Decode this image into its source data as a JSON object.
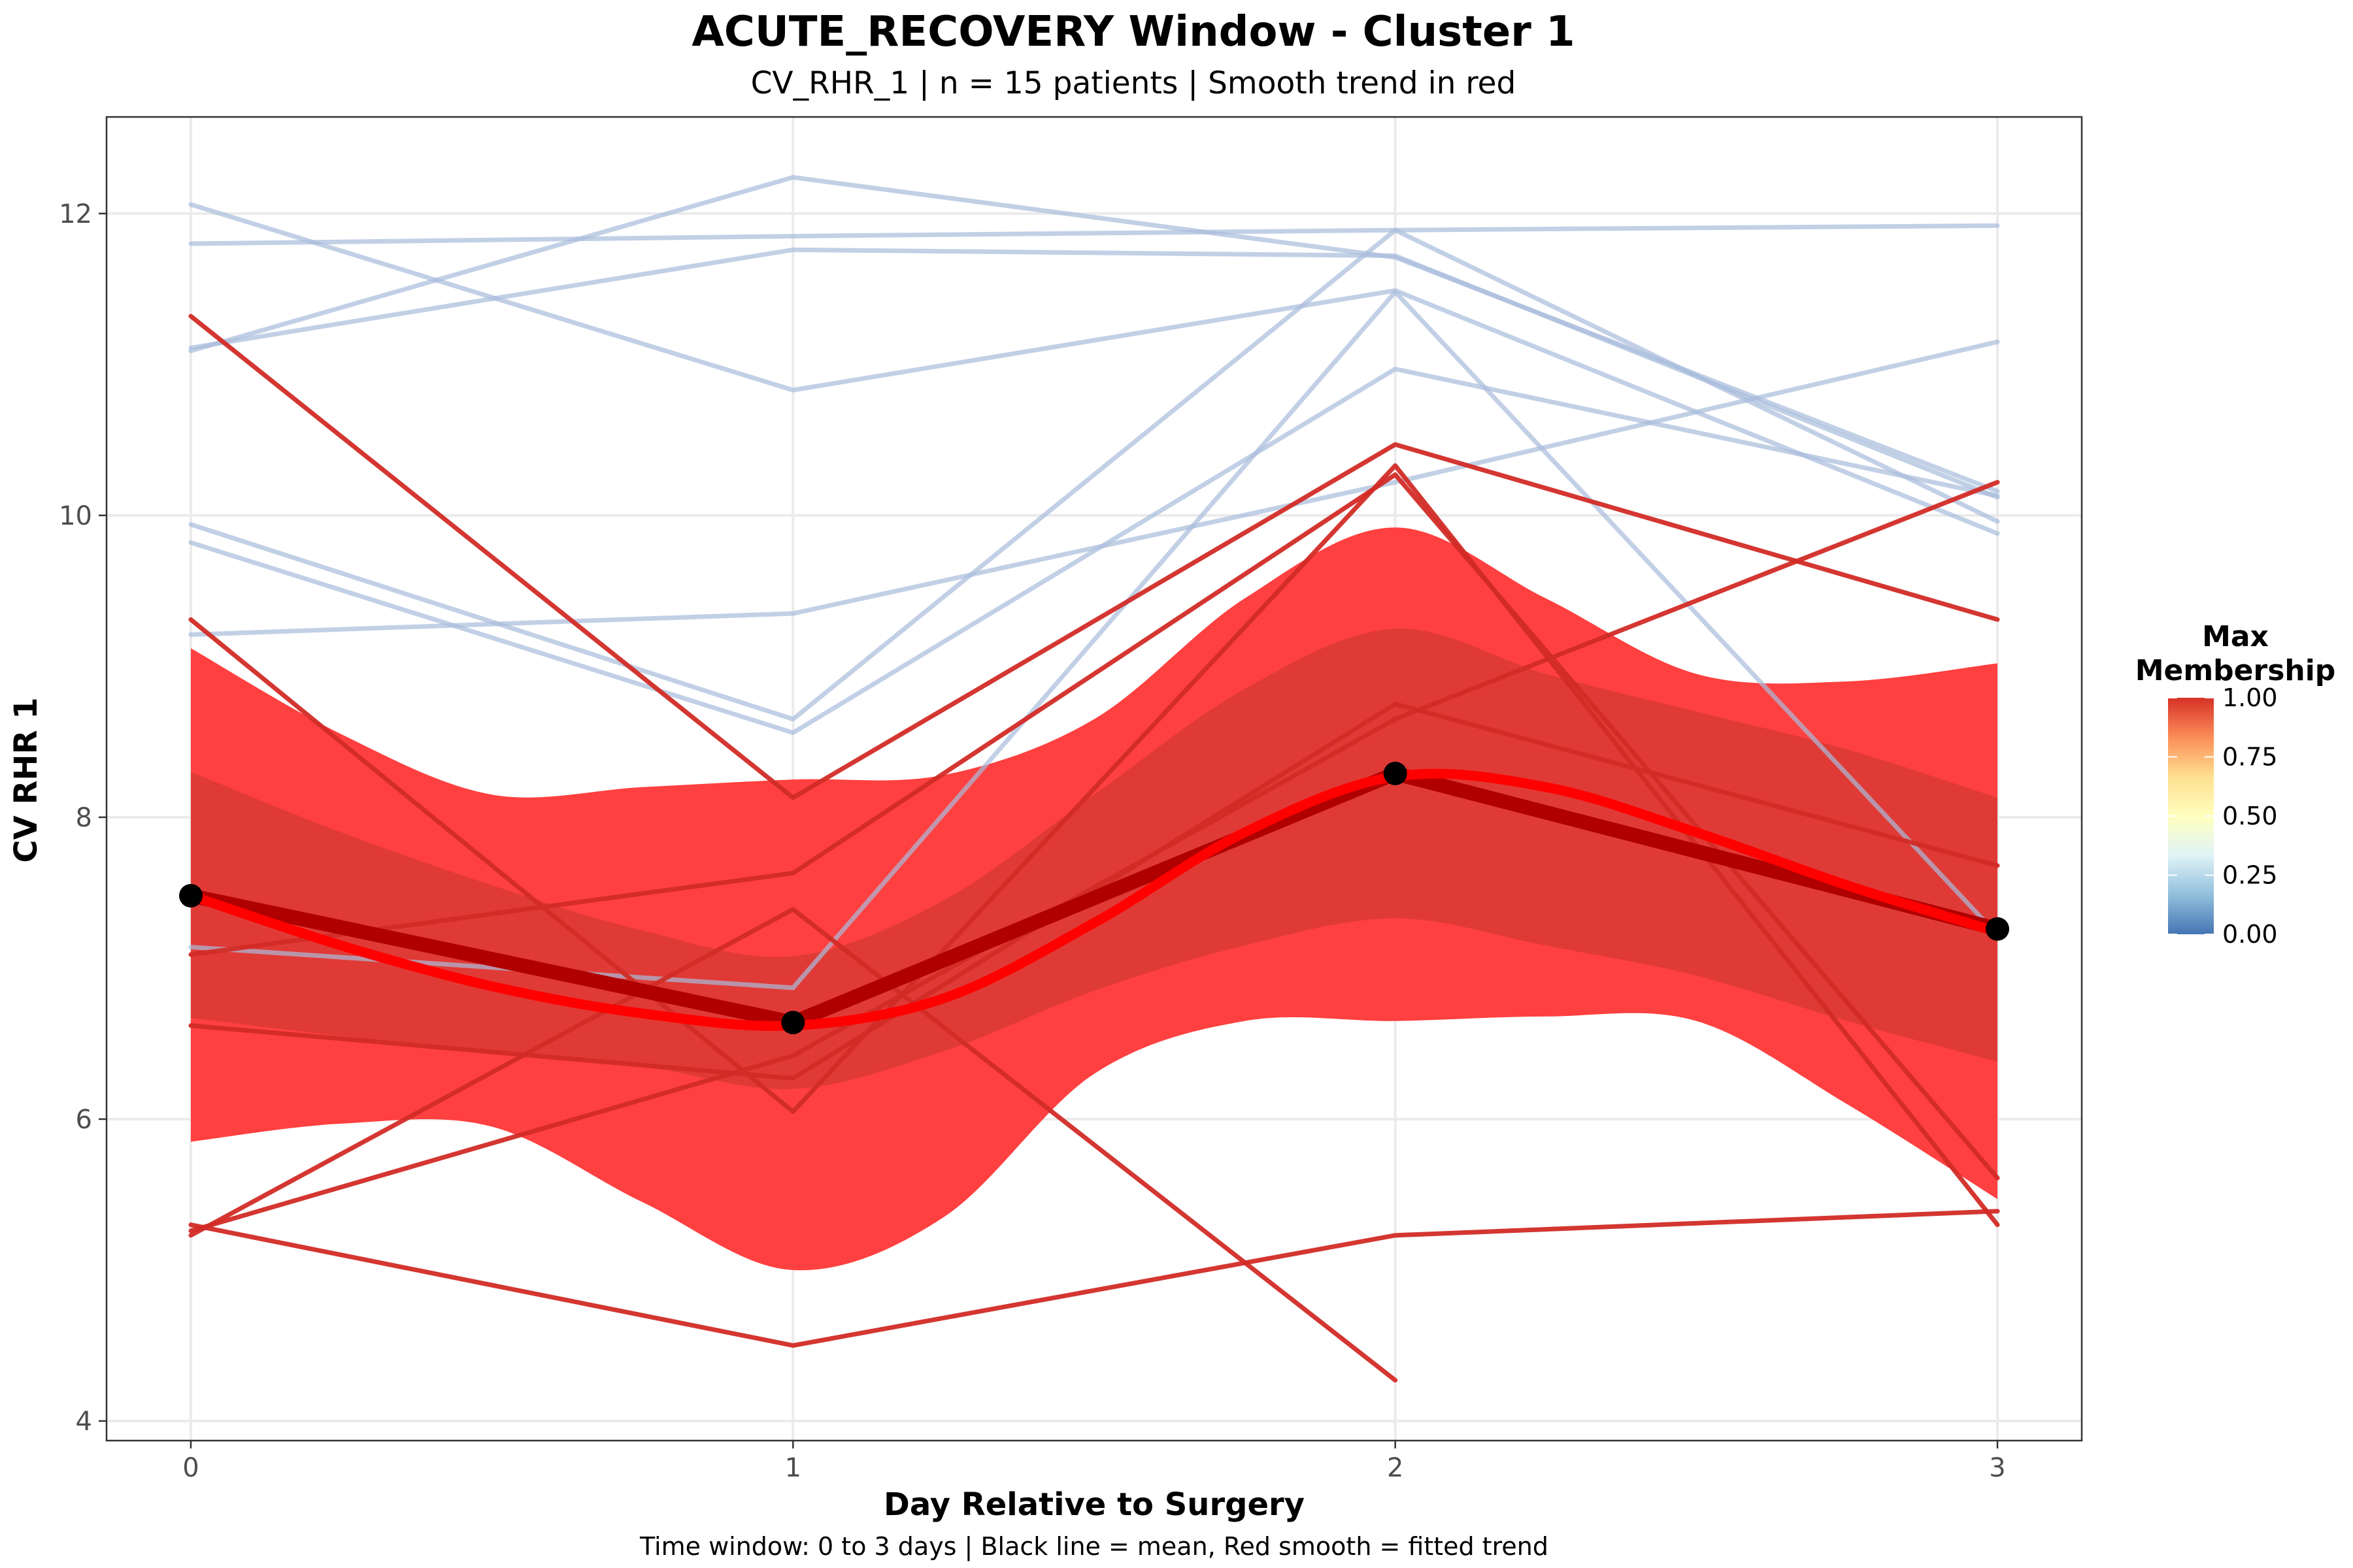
{
  "chart_data": {
    "type": "line",
    "title": "ACUTE_RECOVERY Window - Cluster 1",
    "subtitle": "CV_RHR_1 | n = 15 patients | Smooth trend in red",
    "xlabel": "Day Relative to Surgery",
    "ylabel": "CV RHR 1",
    "caption": "Time window: 0 to 3 days | Black line = mean, Red smooth = fitted trend",
    "x_ticks": [
      "0",
      "1",
      "2",
      "3"
    ],
    "y_ticks": [
      "4",
      "6",
      "8",
      "10",
      "12"
    ],
    "xlim": [
      -0.14,
      3.14
    ],
    "ylim": [
      3.87,
      12.64
    ],
    "grid": true,
    "legend": {
      "title_line1": "Max",
      "title_line2": "Membership",
      "position": "right",
      "labels": [
        "1.00",
        "0.75",
        "0.50",
        "0.25",
        "0.00"
      ],
      "colors": [
        "#d73027",
        "#fc8d59",
        "#fee090",
        "#ffffbf",
        "#e0f3f8",
        "#91bfdb",
        "#4575b4"
      ]
    },
    "colors": {
      "low_membership": "#a8bcdc",
      "high_membership": "#d22b26",
      "smooth_trend": "#ff0000",
      "ribbon_outer": "#ff4040",
      "ribbon_inner": "#e03a36",
      "mean_line": "#b00000",
      "mean_points": "#000000"
    },
    "patients_low_membership": [
      {
        "x": [
          0,
          1,
          2,
          3
        ],
        "y": [
          12.06,
          10.83,
          11.49,
          9.88
        ]
      },
      {
        "x": [
          0,
          1,
          2,
          3
        ],
        "y": [
          11.8,
          11.85,
          11.89,
          11.92
        ]
      },
      {
        "x": [
          0,
          1,
          2,
          3
        ],
        "y": [
          11.11,
          11.76,
          11.72,
          10.12
        ]
      },
      {
        "x": [
          0,
          1,
          2,
          3
        ],
        "y": [
          11.09,
          12.24,
          11.71,
          10.16
        ]
      },
      {
        "x": [
          0,
          1,
          2,
          3
        ],
        "y": [
          9.94,
          8.65,
          11.89,
          9.96
        ]
      },
      {
        "x": [
          0,
          1,
          2,
          3
        ],
        "y": [
          9.82,
          8.56,
          10.97,
          10.13
        ]
      },
      {
        "x": [
          0,
          1,
          2,
          3
        ],
        "y": [
          9.21,
          9.35,
          10.22,
          11.15
        ]
      },
      {
        "x": [
          0,
          1,
          2,
          3
        ],
        "y": [
          7.14,
          6.87,
          11.48,
          7.22
        ]
      }
    ],
    "patients_high_membership": [
      {
        "x": [
          0,
          1,
          2,
          3
        ],
        "y": [
          11.32,
          8.13,
          10.47,
          9.31
        ]
      },
      {
        "x": [
          0,
          1,
          2,
          3
        ],
        "y": [
          9.31,
          6.05,
          10.33,
          5.3
        ]
      },
      {
        "x": [
          0,
          1,
          2,
          3
        ],
        "y": [
          7.09,
          7.63,
          10.27,
          5.61
        ]
      },
      {
        "x": [
          0,
          1,
          2,
          3
        ],
        "y": [
          6.62,
          6.27,
          8.75,
          7.68
        ]
      },
      {
        "x": [
          0,
          1,
          2,
          3
        ],
        "y": [
          5.26,
          6.42,
          8.65,
          10.22
        ]
      },
      {
        "x": [
          0,
          1,
          2,
          3
        ],
        "y": [
          5.3,
          4.5,
          5.23,
          5.39
        ]
      },
      {
        "x": [
          0,
          1,
          2
        ],
        "y": [
          5.23,
          7.39,
          4.27
        ]
      }
    ],
    "mean_line": {
      "x": [
        0,
        1,
        2,
        3
      ],
      "y": [
        7.48,
        6.64,
        8.29,
        7.26
      ]
    },
    "smooth_trend": {
      "x": [
        0,
        0.25,
        0.5,
        0.75,
        1,
        1.25,
        1.5,
        1.75,
        2,
        2.25,
        2.5,
        2.75,
        3
      ],
      "y": [
        7.48,
        7.15,
        6.88,
        6.7,
        6.62,
        6.8,
        7.3,
        7.9,
        8.27,
        8.2,
        7.9,
        7.55,
        7.24
      ]
    },
    "ribbon_outer": {
      "x": [
        0,
        0.25,
        0.5,
        0.75,
        1,
        1.25,
        1.5,
        1.75,
        2,
        2.25,
        2.5,
        2.75,
        3
      ],
      "lower": [
        5.85,
        5.97,
        5.95,
        5.45,
        5.0,
        5.35,
        6.3,
        6.65,
        6.65,
        6.68,
        6.65,
        6.1,
        5.47
      ],
      "upper": [
        9.12,
        8.55,
        8.15,
        8.2,
        8.25,
        8.28,
        8.65,
        9.45,
        9.92,
        9.45,
        8.95,
        8.9,
        9.02
      ]
    },
    "ribbon_inner": {
      "x": [
        0,
        0.25,
        0.5,
        0.75,
        1,
        1.25,
        1.5,
        1.75,
        2,
        2.25,
        2.5,
        2.75,
        3
      ],
      "lower": [
        6.67,
        6.55,
        6.45,
        6.35,
        6.2,
        6.45,
        6.85,
        7.15,
        7.33,
        7.15,
        6.95,
        6.65,
        6.38
      ],
      "upper": [
        8.3,
        7.9,
        7.55,
        7.25,
        7.08,
        7.45,
        8.15,
        8.85,
        9.25,
        8.95,
        8.7,
        8.45,
        8.13
      ]
    }
  }
}
